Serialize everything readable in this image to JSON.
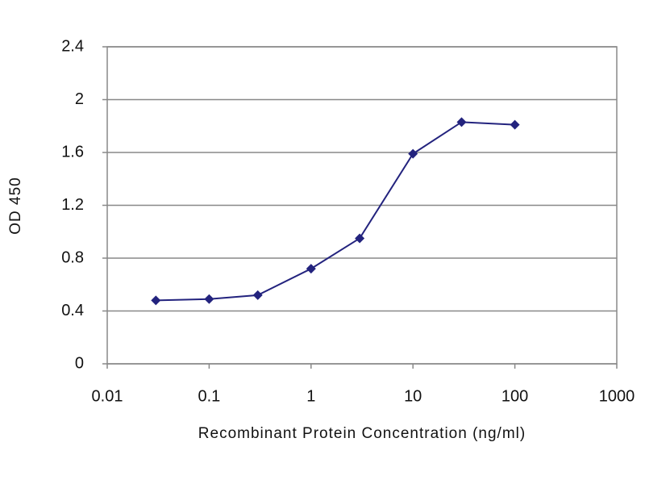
{
  "chart_data": {
    "type": "line",
    "x_label": "Recombinant Protein Concentration (ng/ml)",
    "y_label": "OD 450",
    "x": [
      0.03,
      0.1,
      0.3,
      1,
      3,
      10,
      30,
      100
    ],
    "series": [
      {
        "color": "#23237e",
        "values": [
          0.48,
          0.49,
          0.52,
          0.72,
          0.95,
          1.59,
          1.83,
          1.81
        ]
      }
    ],
    "x_log": true,
    "xlim": [
      0.01,
      1000
    ],
    "xticks": [
      0.01,
      0.1,
      1,
      10,
      100,
      1000
    ],
    "ylim": [
      0,
      2.4
    ],
    "yticks": [
      0,
      0.4,
      0.8,
      1.2,
      1.6,
      2,
      2.4
    ],
    "grid": true
  }
}
